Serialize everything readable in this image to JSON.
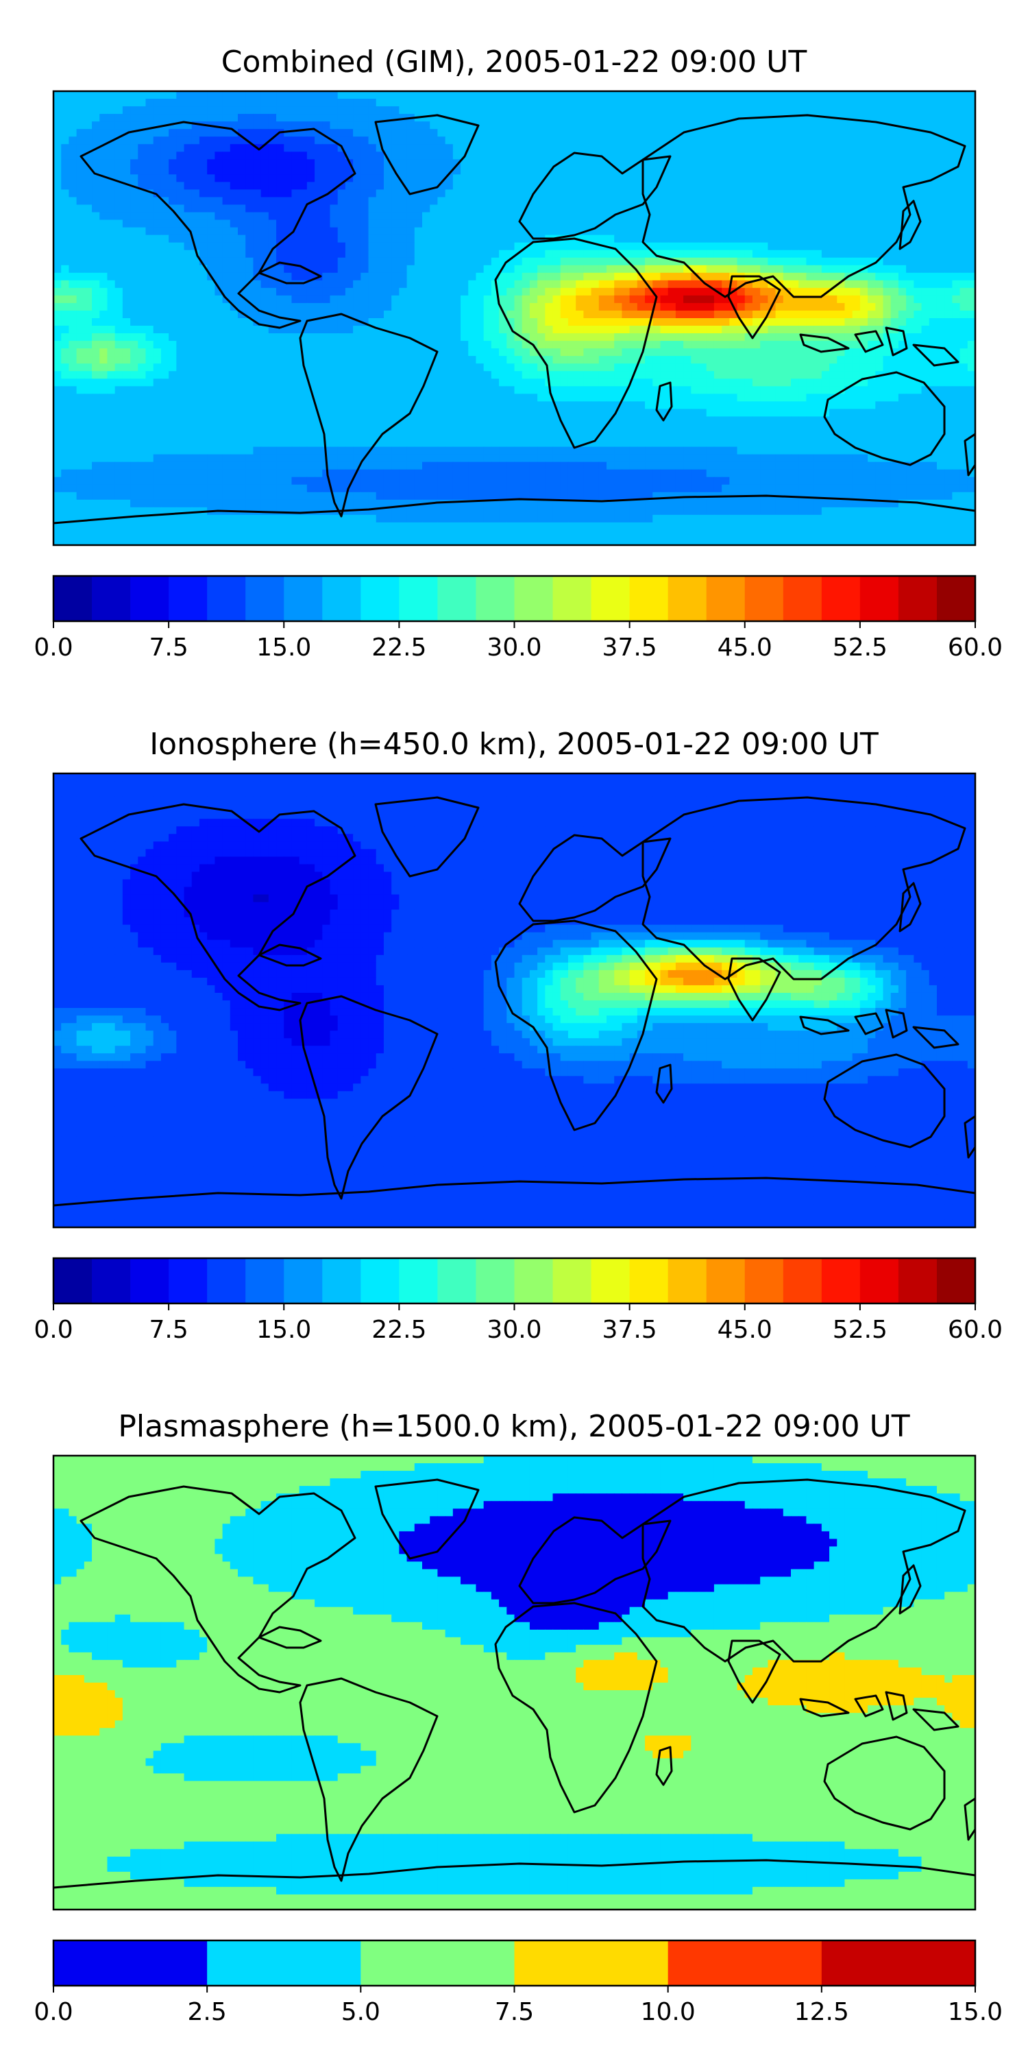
{
  "panels": [
    {
      "id": "combined",
      "title": "Combined (GIM), 2005-01-22 09:00 UT",
      "colorbar": {
        "min": 0,
        "max": 60,
        "levels": 24,
        "ticks": [
          "0.0",
          "7.5",
          "15.0",
          "22.5",
          "30.0",
          "37.5",
          "45.0",
          "52.5",
          "60.0"
        ]
      },
      "field": {
        "base": 18,
        "blobs": [
          {
            "lon": 72,
            "lat": 8,
            "amp": 37,
            "slon": 38,
            "slat": 13
          },
          {
            "lon": 130,
            "lat": 5,
            "amp": 18,
            "slon": 26,
            "slat": 12
          },
          {
            "lon": 20,
            "lat": 0,
            "amp": 16,
            "slon": 28,
            "slat": 22
          },
          {
            "lon": 100,
            "lat": -20,
            "amp": 8,
            "slon": 55,
            "slat": 16
          },
          {
            "lon": -160,
            "lat": -15,
            "amp": 12,
            "slon": 22,
            "slat": 10
          },
          {
            "lon": -175,
            "lat": 8,
            "amp": 10,
            "slon": 18,
            "slat": 9
          },
          {
            "lon": -100,
            "lat": 60,
            "amp": -10,
            "slon": 45,
            "slat": 18
          },
          {
            "lon": -80,
            "lat": 25,
            "amp": -7,
            "slon": 25,
            "slat": 20
          },
          {
            "lon": 0,
            "lat": -65,
            "amp": -5,
            "slon": 120,
            "slat": 10
          }
        ]
      }
    },
    {
      "id": "ionosphere",
      "title": "Ionosphere  (h=450.0 km), 2005-01-22 09:00 UT",
      "colorbar": {
        "min": 0,
        "max": 60,
        "levels": 24,
        "ticks": [
          "0.0",
          "7.5",
          "15.0",
          "22.5",
          "30.0",
          "37.5",
          "45.0",
          "52.5",
          "60.0"
        ]
      },
      "field": {
        "base": 11,
        "blobs": [
          {
            "lon": 72,
            "lat": 10,
            "amp": 33,
            "slon": 35,
            "slat": 12
          },
          {
            "lon": 125,
            "lat": 5,
            "amp": 15,
            "slon": 25,
            "slat": 12
          },
          {
            "lon": 25,
            "lat": 0,
            "amp": 13,
            "slon": 26,
            "slat": 20
          },
          {
            "lon": 100,
            "lat": -18,
            "amp": 6,
            "slon": 55,
            "slat": 14
          },
          {
            "lon": -160,
            "lat": -15,
            "amp": 8,
            "slon": 22,
            "slat": 10
          },
          {
            "lon": -100,
            "lat": 40,
            "amp": -6,
            "slon": 40,
            "slat": 25
          },
          {
            "lon": -80,
            "lat": -10,
            "amp": -4,
            "slon": 25,
            "slat": 25
          }
        ]
      }
    },
    {
      "id": "plasmasphere",
      "title": "Plasmasphere (h=1500.0 km), 2005-01-22 09:00 UT",
      "colorbar": {
        "min": 0,
        "max": 15,
        "levels": 6,
        "ticks": [
          "0.0",
          "2.5",
          "5.0",
          "7.5",
          "10.0",
          "12.5",
          "15.0"
        ]
      },
      "field": {
        "base": 5.8,
        "blobs": [
          {
            "lon": 40,
            "lat": 55,
            "amp": -6,
            "slon": 110,
            "slat": 25
          },
          {
            "lon": 20,
            "lat": 25,
            "amp": -3,
            "slon": 30,
            "slat": 15
          },
          {
            "lon": 40,
            "lat": 5,
            "amp": 3.8,
            "slon": 22,
            "slat": 10
          },
          {
            "lon": 125,
            "lat": 0,
            "amp": 4,
            "slon": 40,
            "slat": 12
          },
          {
            "lon": -170,
            "lat": -10,
            "amp": 3.5,
            "slon": 20,
            "slat": 14
          },
          {
            "lon": 60,
            "lat": -25,
            "amp": 3.5,
            "slon": 12,
            "slat": 6
          },
          {
            "lon": 0,
            "lat": -72,
            "amp": -2.5,
            "slon": 150,
            "slat": 12
          },
          {
            "lon": -100,
            "lat": -30,
            "amp": -2.2,
            "slon": 45,
            "slat": 10
          },
          {
            "lon": -150,
            "lat": 15,
            "amp": -2.0,
            "slon": 30,
            "slat": 10
          }
        ]
      }
    }
  ],
  "colors": {
    "jet": [
      "#00008f",
      "#0000ff",
      "#0080ff",
      "#00ffff",
      "#80ff80",
      "#ffff00",
      "#ff8000",
      "#ff0000",
      "#800000"
    ],
    "coastline": "#000000"
  }
}
